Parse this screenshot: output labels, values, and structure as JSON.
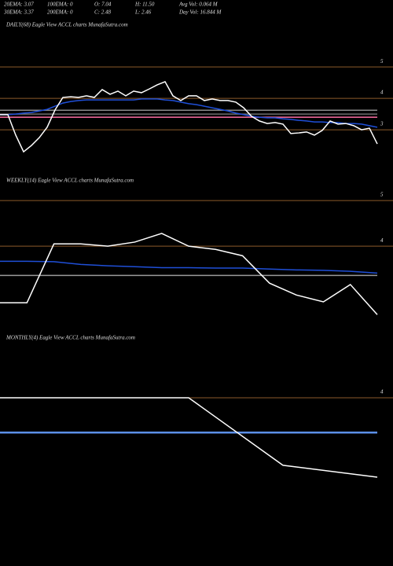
{
  "header": {
    "rows": [
      [
        "20EMA: 3.07",
        "100EMA: 0",
        "O: 7.04",
        "H: 11.50",
        "Avg Vol: 0.064  M"
      ],
      [
        "30EMA: 3.37",
        "200EMA: 0",
        "C: 2.48",
        "L: 2.46",
        "Day Vol: 16.844  M"
      ]
    ]
  },
  "chart_data": [
    {
      "type": "line",
      "title": "DAILY(68) Eagle   View  ACCL  charts MunafaSutra.com",
      "ylim": [
        1.5,
        6.13
      ],
      "yticks": [
        5,
        4,
        3
      ],
      "hlines": [
        {
          "value": 3.62,
          "color": "#8a8a8a"
        },
        {
          "value": 3.5,
          "color": "#6e6e6e"
        },
        {
          "value": 3.4,
          "color": "#ff6fa5"
        }
      ],
      "series": [
        {
          "color": "#1f4fd8",
          "values": [
            3.48,
            3.48,
            3.5,
            3.53,
            3.55,
            3.6,
            3.65,
            3.75,
            3.85,
            3.9,
            3.93,
            3.95,
            3.95,
            3.95,
            3.95,
            3.95,
            3.95,
            3.95,
            3.98,
            3.98,
            3.98,
            3.95,
            3.93,
            3.88,
            3.83,
            3.8,
            3.75,
            3.7,
            3.65,
            3.6,
            3.53,
            3.48,
            3.43,
            3.4,
            3.38,
            3.38,
            3.35,
            3.33,
            3.3,
            3.28,
            3.25,
            3.25,
            3.23,
            3.23,
            3.2,
            3.2,
            3.18,
            3.13,
            3.08
          ]
        },
        {
          "color": "#ffffff",
          "values": [
            3.48,
            3.48,
            2.83,
            2.3,
            2.5,
            2.75,
            3.08,
            3.63,
            4.03,
            4.05,
            4.03,
            4.08,
            4.03,
            4.28,
            4.13,
            4.23,
            4.08,
            4.23,
            4.18,
            4.3,
            4.43,
            4.53,
            4.08,
            3.93,
            4.08,
            4.08,
            3.93,
            3.98,
            3.93,
            3.93,
            3.88,
            3.7,
            3.43,
            3.28,
            3.2,
            3.23,
            3.18,
            2.88,
            2.9,
            2.93,
            2.83,
            2.98,
            3.28,
            3.18,
            3.2,
            3.13,
            3.0,
            3.05,
            2.55
          ]
        }
      ]
    },
    {
      "type": "line",
      "title": "WEEKLY(14) Eagle   View  ACCL  charts MunafaSutra.com",
      "ylim": [
        2.16,
        5.26
      ],
      "yticks": [
        5,
        4
      ],
      "hlines": [
        {
          "value": 3.36,
          "color": "#9a9a9a"
        }
      ],
      "series": [
        {
          "color": "#1f4fd8",
          "values": [
            3.67,
            3.67,
            3.66,
            3.6,
            3.57,
            3.55,
            3.53,
            3.53,
            3.52,
            3.52,
            3.5,
            3.48,
            3.47,
            3.45,
            3.41
          ]
        },
        {
          "color": "#ffffff",
          "values": [
            2.76,
            2.76,
            4.05,
            4.05,
            4.0,
            4.09,
            4.28,
            4.0,
            3.93,
            3.79,
            3.19,
            2.93,
            2.78,
            3.16,
            2.5
          ]
        }
      ]
    },
    {
      "type": "line",
      "title": "MONTHLY(4) Eagle   View  ACCL  charts MunafaSutra.com",
      "ylim": [
        0.76,
        5.15
      ],
      "yticks": [
        4
      ],
      "hlines": [
        {
          "value": 3.33,
          "color": "#5b8fe8"
        }
      ],
      "series": [
        {
          "color": "#ffffff",
          "values": [
            4.0,
            4.0,
            4.0,
            2.7,
            2.47
          ]
        }
      ]
    }
  ]
}
